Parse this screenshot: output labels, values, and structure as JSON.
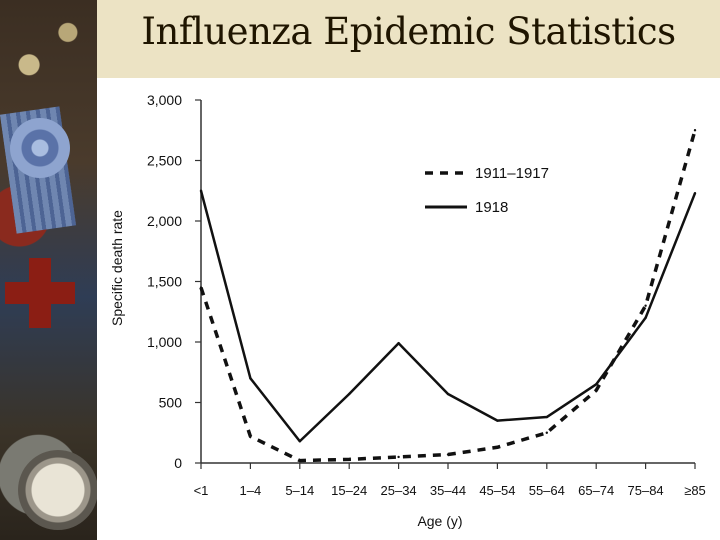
{
  "slide": {
    "title": "Influenza Epidemic Statistics"
  },
  "chart_data": {
    "type": "line",
    "title": "Influenza Epidemic Statistics",
    "xlabel": "Age (y)",
    "ylabel": "Specific death rate",
    "ylim": [
      0,
      3000
    ],
    "yticks": [
      0,
      500,
      1000,
      1500,
      2000,
      2500,
      3000
    ],
    "ytick_labels": [
      "0",
      "500",
      "1,000",
      "1,500",
      "2,000",
      "2,500",
      "3,000"
    ],
    "categories": [
      "<1",
      "1–4",
      "5–14",
      "15–24",
      "25–34",
      "35–44",
      "45–54",
      "55–64",
      "65–74",
      "75–84",
      "≥85"
    ],
    "legend_position": "top-right",
    "series": [
      {
        "name": "1911–1917",
        "style": "dashed",
        "values": [
          1450,
          220,
          20,
          30,
          50,
          70,
          130,
          250,
          600,
          1300,
          2750
        ]
      },
      {
        "name": "1918",
        "style": "solid",
        "values": [
          2250,
          700,
          180,
          570,
          990,
          570,
          350,
          380,
          650,
          1200,
          2230
        ]
      }
    ]
  }
}
